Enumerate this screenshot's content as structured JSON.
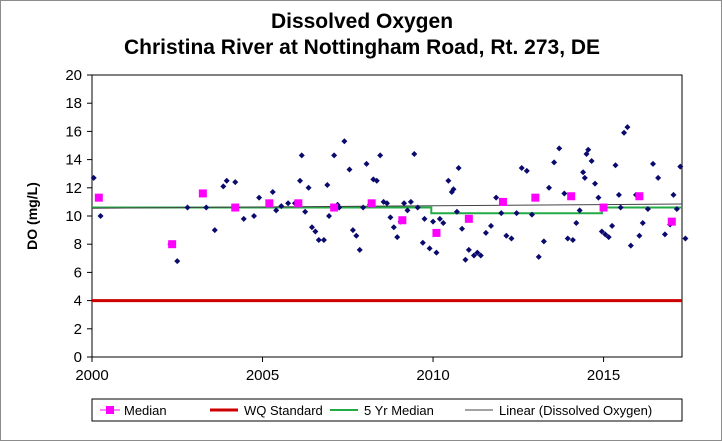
{
  "chart_data": {
    "type": "scatter",
    "title": [
      "Dissolved Oxygen",
      "Christina River at Nottingham Road, Rt. 273, DE"
    ],
    "xlabel": "",
    "ylabel": "DO (mg/L)",
    "xlim": [
      2000,
      2017.3
    ],
    "ylim": [
      0,
      20
    ],
    "xticks": [
      2000,
      2005,
      2010,
      2015
    ],
    "yticks": [
      0,
      2,
      4,
      6,
      8,
      10,
      12,
      14,
      16,
      18,
      20
    ],
    "grid": false,
    "legend_position": "bottom",
    "series": [
      {
        "name": "Dissolved Oxygen",
        "kind": "points",
        "marker": "diamond",
        "color": "#0a0a6e",
        "points": [
          [
            2000.05,
            12.7
          ],
          [
            2000.25,
            10.0
          ],
          [
            2002.3,
            8.0
          ],
          [
            2002.5,
            6.8
          ],
          [
            2002.8,
            10.6
          ],
          [
            2003.25,
            11.6
          ],
          [
            2003.35,
            10.6
          ],
          [
            2003.6,
            9.0
          ],
          [
            2003.85,
            12.1
          ],
          [
            2003.95,
            12.5
          ],
          [
            2004.2,
            12.4
          ],
          [
            2004.25,
            10.6
          ],
          [
            2004.45,
            9.8
          ],
          [
            2004.75,
            10.0
          ],
          [
            2004.9,
            11.3
          ],
          [
            2005.3,
            11.7
          ],
          [
            2005.4,
            10.4
          ],
          [
            2005.55,
            10.7
          ],
          [
            2005.75,
            10.9
          ],
          [
            2005.95,
            10.9
          ],
          [
            2006.1,
            12.5
          ],
          [
            2006.15,
            14.3
          ],
          [
            2006.25,
            10.3
          ],
          [
            2006.35,
            12.0
          ],
          [
            2006.45,
            9.2
          ],
          [
            2006.55,
            8.9
          ],
          [
            2006.65,
            8.3
          ],
          [
            2006.8,
            8.3
          ],
          [
            2006.9,
            12.2
          ],
          [
            2006.95,
            10.0
          ],
          [
            2007.1,
            14.3
          ],
          [
            2007.2,
            10.8
          ],
          [
            2007.25,
            10.6
          ],
          [
            2007.4,
            15.3
          ],
          [
            2007.55,
            13.3
          ],
          [
            2007.65,
            9.0
          ],
          [
            2007.75,
            8.6
          ],
          [
            2007.85,
            7.6
          ],
          [
            2007.95,
            10.6
          ],
          [
            2008.05,
            13.7
          ],
          [
            2008.15,
            10.8
          ],
          [
            2008.25,
            12.6
          ],
          [
            2008.35,
            12.5
          ],
          [
            2008.45,
            14.3
          ],
          [
            2008.55,
            11.0
          ],
          [
            2008.65,
            10.9
          ],
          [
            2008.75,
            9.9
          ],
          [
            2008.85,
            9.2
          ],
          [
            2008.95,
            8.5
          ],
          [
            2009.05,
            9.6
          ],
          [
            2009.15,
            10.9
          ],
          [
            2009.25,
            10.4
          ],
          [
            2009.35,
            11.0
          ],
          [
            2009.45,
            14.4
          ],
          [
            2009.55,
            10.6
          ],
          [
            2009.7,
            8.1
          ],
          [
            2009.75,
            9.8
          ],
          [
            2009.9,
            7.7
          ],
          [
            2010.0,
            9.6
          ],
          [
            2010.1,
            7.4
          ],
          [
            2010.2,
            9.8
          ],
          [
            2010.3,
            9.5
          ],
          [
            2010.45,
            12.5
          ],
          [
            2010.55,
            11.7
          ],
          [
            2010.6,
            11.9
          ],
          [
            2010.7,
            10.3
          ],
          [
            2010.75,
            13.4
          ],
          [
            2010.85,
            9.1
          ],
          [
            2010.95,
            6.9
          ],
          [
            2011.05,
            7.6
          ],
          [
            2011.2,
            7.2
          ],
          [
            2011.3,
            7.4
          ],
          [
            2011.4,
            7.2
          ],
          [
            2011.55,
            8.8
          ],
          [
            2011.7,
            9.3
          ],
          [
            2011.85,
            11.3
          ],
          [
            2012.0,
            10.2
          ],
          [
            2012.15,
            8.6
          ],
          [
            2012.3,
            8.4
          ],
          [
            2012.45,
            10.2
          ],
          [
            2012.6,
            13.4
          ],
          [
            2012.75,
            13.2
          ],
          [
            2012.9,
            10.1
          ],
          [
            2013.1,
            7.1
          ],
          [
            2013.25,
            8.2
          ],
          [
            2013.4,
            12.0
          ],
          [
            2013.55,
            13.8
          ],
          [
            2013.7,
            14.8
          ],
          [
            2013.85,
            11.6
          ],
          [
            2013.95,
            8.4
          ],
          [
            2014.1,
            8.3
          ],
          [
            2014.2,
            9.5
          ],
          [
            2014.3,
            10.4
          ],
          [
            2014.4,
            13.1
          ],
          [
            2014.45,
            12.7
          ],
          [
            2014.5,
            14.4
          ],
          [
            2014.55,
            14.7
          ],
          [
            2014.65,
            13.9
          ],
          [
            2014.75,
            12.3
          ],
          [
            2014.85,
            11.3
          ],
          [
            2014.95,
            8.9
          ],
          [
            2015.05,
            8.7
          ],
          [
            2015.15,
            8.5
          ],
          [
            2015.25,
            9.3
          ],
          [
            2015.35,
            13.6
          ],
          [
            2015.45,
            11.5
          ],
          [
            2015.5,
            10.6
          ],
          [
            2015.6,
            15.9
          ],
          [
            2015.7,
            16.3
          ],
          [
            2015.8,
            7.9
          ],
          [
            2015.95,
            11.5
          ],
          [
            2016.05,
            8.6
          ],
          [
            2016.15,
            9.5
          ],
          [
            2016.3,
            10.5
          ],
          [
            2016.45,
            13.7
          ],
          [
            2016.6,
            12.7
          ],
          [
            2016.8,
            8.7
          ],
          [
            2016.95,
            9.4
          ],
          [
            2017.05,
            11.5
          ],
          [
            2017.15,
            10.5
          ],
          [
            2017.25,
            13.5
          ],
          [
            2017.4,
            8.4
          ]
        ]
      },
      {
        "name": "Median",
        "kind": "points",
        "marker": "square",
        "color": "#ff00ff",
        "points": [
          [
            2000.2,
            11.3
          ],
          [
            2002.35,
            8.0
          ],
          [
            2003.25,
            11.6
          ],
          [
            2004.2,
            10.6
          ],
          [
            2005.2,
            10.9
          ],
          [
            2006.05,
            10.9
          ],
          [
            2007.1,
            10.6
          ],
          [
            2008.2,
            10.9
          ],
          [
            2009.1,
            9.7
          ],
          [
            2010.1,
            8.8
          ],
          [
            2011.05,
            9.8
          ],
          [
            2012.05,
            11.0
          ],
          [
            2013.0,
            11.3
          ],
          [
            2014.05,
            11.4
          ],
          [
            2015.0,
            10.6
          ],
          [
            2016.05,
            11.4
          ],
          [
            2017.0,
            9.6
          ]
        ]
      },
      {
        "name": "WQ Standard",
        "kind": "line",
        "color": "#cc0000",
        "points": [
          [
            2000,
            4
          ],
          [
            2017.3,
            4
          ]
        ]
      },
      {
        "name": "5 Yr Median",
        "kind": "step",
        "color": "#22aa44",
        "points": [
          [
            2000,
            10.6
          ],
          [
            2009.95,
            10.6
          ],
          [
            2009.95,
            10.2
          ],
          [
            2014.95,
            10.2
          ],
          [
            2014.95,
            10.6
          ],
          [
            2017.3,
            10.6
          ]
        ]
      },
      {
        "name": "Linear (Dissolved Oxygen)",
        "kind": "line",
        "color": "#444444",
        "points": [
          [
            2000,
            10.55
          ],
          [
            2017.3,
            10.85
          ]
        ]
      }
    ],
    "legend": [
      "Median",
      "WQ Standard",
      "5 Yr Median",
      "Linear (Dissolved Oxygen)"
    ]
  }
}
